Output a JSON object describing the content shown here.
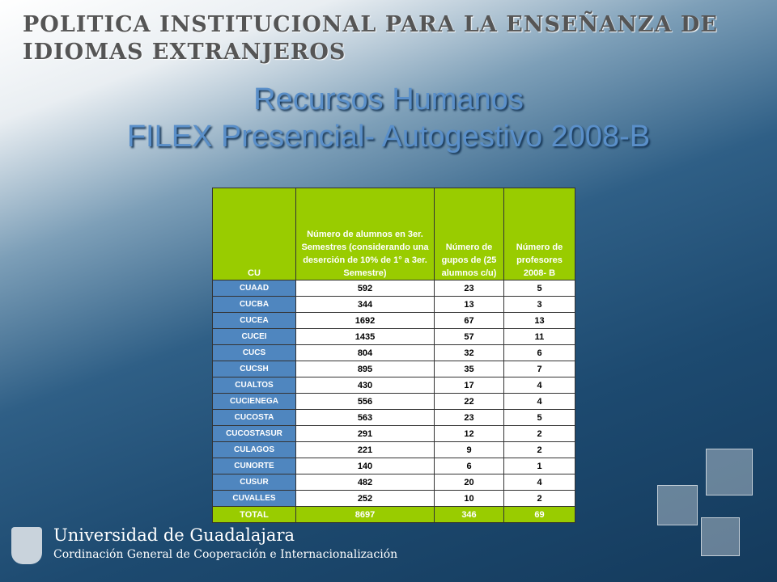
{
  "header": {
    "title": "POLITICA INSTITUCIONAL PARA LA ENSEÑANZA DE IDIOMAS EXTRANJEROS"
  },
  "slide": {
    "title_lines": [
      "Recursos Humanos",
      "FILEX Presencial- Autogestivo 2008-B"
    ]
  },
  "table": {
    "columns": [
      "CU",
      "Número de alumnos en 3er. Semestres (considerando una deserción de 10% de 1° a 3er. Semestre)",
      "Número de gupos de (25 alumnos c/u)",
      "Número de profesores 2008- B"
    ],
    "rows": [
      [
        "CUAAD",
        592,
        23,
        5
      ],
      [
        "CUCBA",
        344,
        13,
        3
      ],
      [
        "CUCEA",
        1692,
        67,
        13
      ],
      [
        "CUCEI",
        1435,
        57,
        11
      ],
      [
        "CUCS",
        804,
        32,
        6
      ],
      [
        "CUCSH",
        895,
        35,
        7
      ],
      [
        "CUALTOS",
        430,
        17,
        4
      ],
      [
        "CUCIENEGA",
        556,
        22,
        4
      ],
      [
        "CUCOSTA",
        563,
        23,
        5
      ],
      [
        "CUCOSTASUR",
        291,
        12,
        2
      ],
      [
        "CULAGOS",
        221,
        9,
        2
      ],
      [
        "CUNORTE",
        140,
        6,
        1
      ],
      [
        "CUSUR",
        482,
        20,
        4
      ],
      [
        "CUVALLES",
        252,
        10,
        2
      ]
    ],
    "total": [
      "TOTAL",
      8697,
      346,
      69
    ]
  },
  "footer": {
    "university": "Universidad de Guadalajara",
    "office": "Cordinación General de Cooperación e Internacionalización"
  }
}
